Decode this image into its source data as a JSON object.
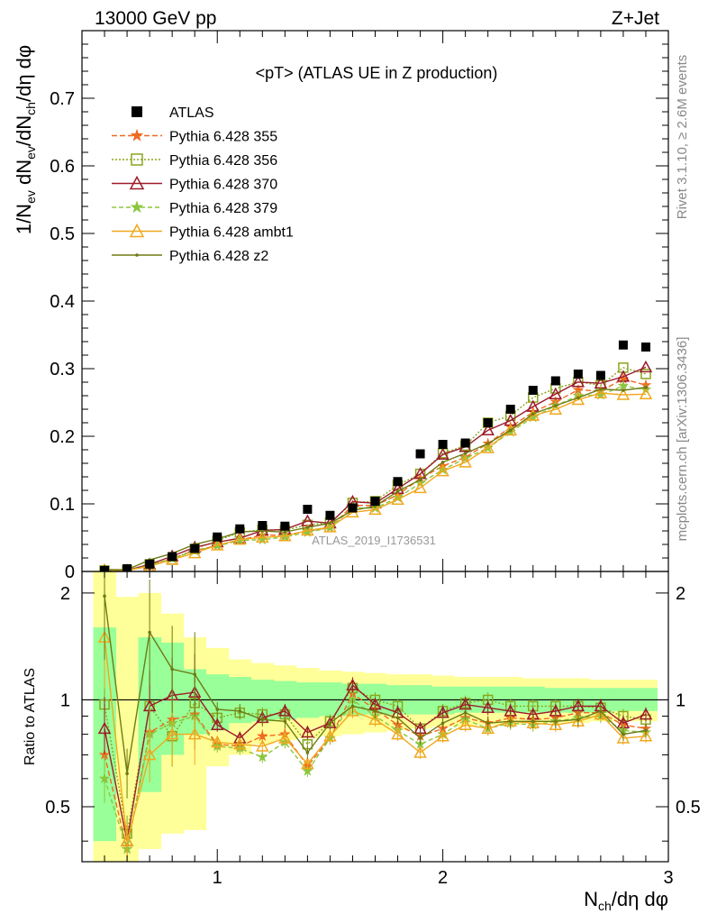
{
  "header": {
    "left": "13000 GeV pp",
    "right": "Z+Jet",
    "title": "<pT> (ATLAS UE in Z production)",
    "watermark": "ATLAS_2019_I1736531",
    "side_top": "Rivet 3.1.10, ≥ 2.6M events",
    "side_bottom": "mcplots.cern.ch [arXiv:1306.3436]"
  },
  "chart_data": {
    "type": "scatter",
    "xlabel": "N_ch/dη dφ",
    "ylabel_main": "1/N_ev dN_ev/dN_ch/dη dφ",
    "ylabel_ratio": "Ratio to ATLAS",
    "xlim": [
      0.4,
      3.0
    ],
    "ylim_main": [
      0,
      0.8
    ],
    "ylim_ratio": [
      0.35,
      2.3
    ],
    "ratio_scale": "log",
    "x_ticks": [
      "1",
      "2",
      "3"
    ],
    "y_ticks_main": [
      "0",
      "0.1",
      "0.2",
      "0.3",
      "0.4",
      "0.5",
      "0.6",
      "0.7"
    ],
    "y_ticks_ratio": [
      "0.5",
      "1",
      "2"
    ],
    "x": [
      0.5,
      0.6,
      0.7,
      0.8,
      0.9,
      1.0,
      1.1,
      1.2,
      1.3,
      1.4,
      1.5,
      1.6,
      1.7,
      1.8,
      1.9,
      2.0,
      2.1,
      2.2,
      2.3,
      2.4,
      2.5,
      2.6,
      2.7,
      2.8,
      2.9
    ],
    "atlas": [
      0.0015,
      0.004,
      0.011,
      0.022,
      0.034,
      0.051,
      0.063,
      0.068,
      0.067,
      0.092,
      0.083,
      0.094,
      0.104,
      0.133,
      0.174,
      0.188,
      0.19,
      0.22,
      0.24,
      0.268,
      0.282,
      0.292,
      0.29,
      0.335,
      0.332
    ],
    "band_inner": [
      [
        0.4,
        1.6
      ],
      [
        0.5,
        0.5
      ],
      [
        0.55,
        1.5
      ],
      [
        0.7,
        1.45
      ],
      [
        0.8,
        1.22
      ],
      [
        0.82,
        1.18
      ],
      [
        0.86,
        1.16
      ],
      [
        0.87,
        1.14
      ],
      [
        0.88,
        1.13
      ],
      [
        0.89,
        1.12
      ],
      [
        0.9,
        1.12
      ],
      [
        0.9,
        1.11
      ],
      [
        0.91,
        1.11
      ],
      [
        0.91,
        1.1
      ],
      [
        0.91,
        1.1
      ],
      [
        0.91,
        1.09
      ],
      [
        0.92,
        1.09
      ],
      [
        0.92,
        1.09
      ],
      [
        0.92,
        1.09
      ],
      [
        0.92,
        1.09
      ],
      [
        0.92,
        1.08
      ],
      [
        0.92,
        1.08
      ],
      [
        0.92,
        1.08
      ],
      [
        0.93,
        1.08
      ],
      [
        0.93,
        1.08
      ]
    ],
    "band_outer": [
      [
        0.3,
        2.3
      ],
      [
        0.3,
        1.95
      ],
      [
        0.38,
        2.0
      ],
      [
        0.42,
        1.75
      ],
      [
        0.43,
        1.5
      ],
      [
        0.65,
        1.4
      ],
      [
        0.7,
        1.3
      ],
      [
        0.75,
        1.27
      ],
      [
        0.77,
        1.25
      ],
      [
        0.78,
        1.23
      ],
      [
        0.79,
        1.21
      ],
      [
        0.8,
        1.2
      ],
      [
        0.81,
        1.19
      ],
      [
        0.82,
        1.18
      ],
      [
        0.83,
        1.18
      ],
      [
        0.84,
        1.17
      ],
      [
        0.84,
        1.16
      ],
      [
        0.85,
        1.16
      ],
      [
        0.85,
        1.16
      ],
      [
        0.86,
        1.15
      ],
      [
        0.86,
        1.15
      ],
      [
        0.86,
        1.15
      ],
      [
        0.87,
        1.14
      ],
      [
        0.87,
        1.14
      ],
      [
        0.87,
        1.14
      ]
    ],
    "legend": [
      "ATLAS",
      "Pythia 6.428 355",
      "Pythia 6.428 356",
      "Pythia 6.428 370",
      "Pythia 6.428 379",
      "Pythia 6.428 ambt1",
      "Pythia 6.428 z2"
    ],
    "series": [
      {
        "name": "Pythia 6.428 355",
        "color": "#f06a20",
        "marker": "star",
        "dash": "6,3",
        "ratio": [
          0.7,
          0.38,
          0.81,
          0.88,
          0.91,
          0.75,
          0.74,
          0.79,
          0.8,
          0.65,
          0.78,
          1.04,
          0.94,
          0.85,
          0.79,
          0.83,
          0.89,
          0.86,
          0.89,
          0.88,
          0.89,
          0.92,
          0.92,
          0.85,
          0.83
        ]
      },
      {
        "name": "Pythia 6.428 356",
        "color": "#8aa51e",
        "marker": "square",
        "dash": "2,2",
        "ratio": [
          0.97,
          0.42,
          0.96,
          0.79,
          0.98,
          0.89,
          0.92,
          0.91,
          0.91,
          0.75,
          0.87,
          1.08,
          1.0,
          0.96,
          0.83,
          0.93,
          0.98,
          1.0,
          0.96,
          0.96,
          0.96,
          0.96,
          0.95,
          0.9,
          0.88
        ]
      },
      {
        "name": "Pythia 6.428 370",
        "color": "#9b1c2a",
        "marker": "triangle",
        "dash": "",
        "ratio": [
          0.83,
          0.4,
          0.96,
          1.03,
          1.05,
          0.85,
          0.78,
          0.89,
          0.93,
          0.81,
          0.86,
          1.1,
          0.97,
          0.92,
          0.83,
          0.92,
          0.97,
          0.95,
          0.93,
          0.91,
          0.93,
          0.96,
          0.96,
          0.86,
          0.91
        ]
      },
      {
        "name": "Pythia 6.428 379",
        "color": "#8cc63e",
        "marker": "star",
        "dash": "5,3",
        "ratio": [
          0.6,
          0.38,
          0.8,
          0.86,
          0.9,
          0.74,
          0.73,
          0.69,
          0.76,
          0.63,
          0.78,
          1.0,
          0.9,
          0.82,
          0.75,
          0.8,
          0.88,
          0.83,
          0.86,
          0.85,
          0.87,
          0.89,
          0.9,
          0.82,
          0.81
        ]
      },
      {
        "name": "Pythia 6.428 ambt1",
        "color": "#f0a81e",
        "marker": "triangle",
        "dash": "",
        "ratio": [
          1.5,
          0.4,
          0.7,
          0.8,
          0.8,
          0.76,
          0.75,
          0.74,
          0.78,
          0.66,
          0.79,
          0.93,
          0.88,
          0.8,
          0.71,
          0.79,
          0.85,
          0.83,
          0.87,
          0.86,
          0.85,
          0.87,
          0.91,
          0.78,
          0.79
        ]
      },
      {
        "name": "Pythia 6.428 z2",
        "color": "#6e7a14",
        "marker": "dot",
        "dash": "",
        "ratio": [
          1.96,
          0.62,
          1.55,
          1.22,
          1.18,
          0.94,
          0.93,
          0.88,
          0.87,
          0.71,
          0.86,
          0.96,
          0.93,
          0.89,
          0.78,
          0.86,
          0.92,
          0.86,
          0.87,
          0.87,
          0.87,
          0.88,
          0.93,
          0.8,
          0.82
        ]
      }
    ]
  }
}
